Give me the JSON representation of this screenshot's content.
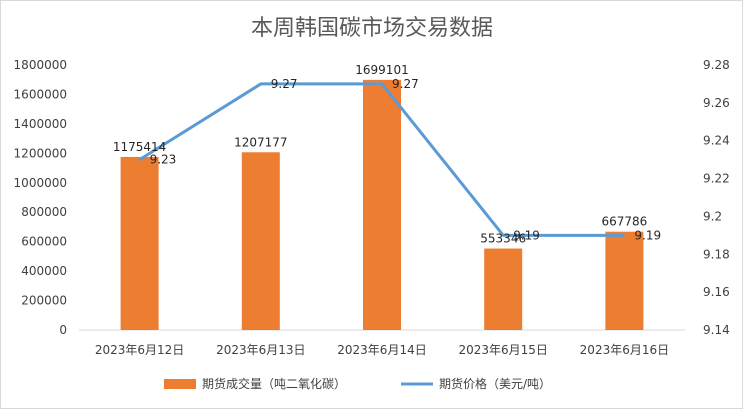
{
  "chart_data": {
    "type": "bar",
    "title": "本周韩国碳市场交易数据",
    "categories": [
      "2023年6月12日",
      "2023年6月13日",
      "2023年6月14日",
      "2023年6月15日",
      "2023年6月16日"
    ],
    "series": [
      {
        "name": "期货成交量（吨二氧化碳）",
        "type": "bar",
        "axis": "left",
        "values": [
          1175414,
          1207177,
          1699101,
          553346,
          667786
        ],
        "labels": [
          "1175414",
          "1207177",
          "1699101",
          "553346",
          "667786"
        ],
        "color": "#ED7D31"
      },
      {
        "name": "期货价格（美元/吨）",
        "type": "line",
        "axis": "right",
        "values": [
          9.23,
          9.27,
          9.27,
          9.19,
          9.19
        ],
        "labels": [
          "9.23",
          "9.27",
          "9.27",
          "9.19",
          "9.19"
        ],
        "color": "#5B9BD5"
      }
    ],
    "y_left": {
      "min": 0,
      "max": 1800000,
      "ticks": [
        0,
        200000,
        400000,
        600000,
        800000,
        1000000,
        1200000,
        1400000,
        1600000,
        1800000
      ],
      "tick_labels": [
        "0",
        "200000",
        "400000",
        "600000",
        "800000",
        "1000000",
        "1200000",
        "1400000",
        "1600000",
        "1800000"
      ]
    },
    "y_right": {
      "min": 9.14,
      "max": 9.28,
      "ticks": [
        9.14,
        9.16,
        9.18,
        9.2,
        9.22,
        9.24,
        9.26,
        9.28
      ],
      "tick_labels": [
        "9.14",
        "9.16",
        "9.18",
        "9.2",
        "9.22",
        "9.24",
        "9.26",
        "9.28"
      ]
    },
    "legend_position": "bottom",
    "grid": false
  }
}
